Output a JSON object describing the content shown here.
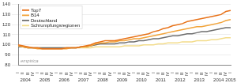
{
  "chart_data": {
    "type": "line",
    "categories": [
      "I",
      "II",
      "III",
      "IV",
      "I",
      "II",
      "III",
      "IV",
      "I",
      "II",
      "III",
      "IV",
      "I",
      "II",
      "III",
      "IV",
      "I",
      "II",
      "III",
      "IV",
      "I",
      "II",
      "III",
      "IV",
      "I",
      "II",
      "III",
      "IV",
      "I",
      "II",
      "III",
      "IV",
      "I",
      "II",
      "III",
      "IV",
      "I",
      "II",
      "III",
      "IV",
      "I",
      "II",
      "III",
      "IV",
      "I"
    ],
    "years": [
      "2004",
      "2005",
      "2006",
      "2007",
      "2008",
      "2009",
      "2010",
      "2011",
      "2012",
      "2013",
      "2014",
      "2015"
    ],
    "series": [
      {
        "name": "Top7",
        "color": "#e8731a",
        "values": [
          100,
          99,
          98,
          97,
          97,
          96,
          96,
          96,
          96,
          96,
          97,
          97,
          97,
          98,
          99,
          100,
          102,
          103,
          104,
          104,
          104,
          105,
          106,
          107,
          108,
          109,
          110,
          111,
          113,
          114,
          116,
          117,
          119,
          120,
          121,
          123,
          124,
          125,
          126,
          127,
          128,
          129,
          130,
          133,
          134
        ]
      },
      {
        "name": "B14",
        "color": "#f2a43a",
        "values": [
          99,
          98,
          97,
          97,
          96,
          96,
          96,
          96,
          96,
          96,
          96,
          97,
          97,
          98,
          98,
          99,
          101,
          102,
          102,
          103,
          103,
          104,
          104,
          105,
          106,
          106,
          107,
          108,
          109,
          110,
          111,
          112,
          113,
          114,
          115,
          116,
          117,
          118,
          118,
          119,
          120,
          121,
          122,
          124,
          125
        ]
      },
      {
        "name": "Deutschland",
        "color": "#6e6e6e",
        "values": [
          98,
          98,
          97,
          97,
          97,
          97,
          97,
          97,
          97,
          97,
          97,
          97,
          97,
          98,
          98,
          99,
          100,
          101,
          101,
          101,
          101,
          102,
          102,
          103,
          103,
          104,
          104,
          105,
          106,
          106,
          107,
          108,
          109,
          109,
          110,
          111,
          111,
          112,
          113,
          113,
          114,
          115,
          116,
          117,
          117
        ]
      },
      {
        "name": "Schrumpfungsregionen",
        "color": "#f3dc8a",
        "values": [
          98,
          98,
          97,
          97,
          97,
          97,
          97,
          97,
          97,
          97,
          97,
          97,
          97,
          97,
          97,
          97,
          98,
          98,
          98,
          98,
          98,
          98,
          99,
          99,
          99,
          99,
          100,
          100,
          100,
          101,
          101,
          102,
          102,
          102,
          103,
          103,
          103,
          104,
          104,
          104,
          105,
          105,
          106,
          107,
          107
        ]
      }
    ],
    "ylim": [
      80,
      140
    ],
    "yticks": [
      80,
      90,
      100,
      110,
      120,
      130,
      140
    ],
    "grid": true,
    "legend": "top-left",
    "annotations": [
      "empirica"
    ]
  }
}
